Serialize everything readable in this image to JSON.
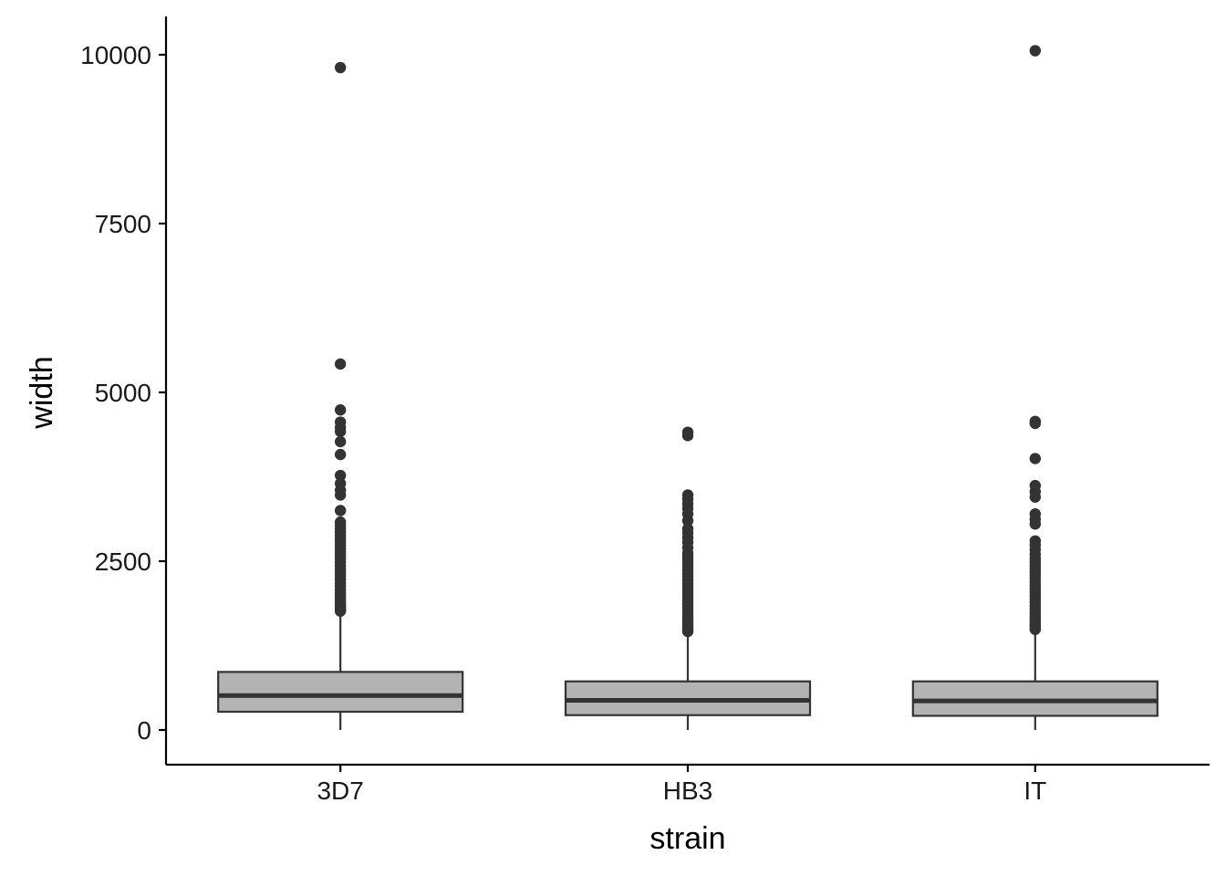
{
  "chart_data": {
    "type": "boxplot",
    "xlabel": "strain",
    "ylabel": "width",
    "categories": [
      "3D7",
      "HB3",
      "IT"
    ],
    "ylim": [
      -500,
      10600
    ],
    "yticks": [
      0,
      2500,
      5000,
      7500,
      10000
    ],
    "grid": false,
    "colors": {
      "box_fill": "#b3b3b3",
      "box_stroke": "#333333",
      "point": "#333333",
      "axis": "#000000"
    },
    "boxes": [
      {
        "category": "3D7",
        "whisker_low": 0,
        "q1": 270,
        "median": 510,
        "q3": 860,
        "whisker_high": 1740,
        "outliers": [
          1760,
          1780,
          1800,
          1830,
          1860,
          1900,
          1940,
          1980,
          2030,
          2080,
          2130,
          2180,
          2230,
          2280,
          2330,
          2380,
          2430,
          2480,
          2530,
          2580,
          2630,
          2680,
          2730,
          2780,
          2830,
          2880,
          2930,
          2980,
          3030,
          3080,
          3250,
          3480,
          3550,
          3650,
          3770,
          4080,
          4270,
          4420,
          4480,
          4560,
          4740,
          5420,
          9810
        ]
      },
      {
        "category": "HB3",
        "whisker_low": 0,
        "q1": 220,
        "median": 440,
        "q3": 720,
        "whisker_high": 1450,
        "outliers": [
          1460,
          1480,
          1500,
          1530,
          1560,
          1600,
          1640,
          1680,
          1720,
          1770,
          1820,
          1870,
          1920,
          1970,
          2020,
          2070,
          2120,
          2170,
          2220,
          2270,
          2320,
          2370,
          2420,
          2470,
          2520,
          2570,
          2620,
          2700,
          2780,
          2850,
          2920,
          2980,
          3100,
          3200,
          3280,
          3350,
          3420,
          3480,
          4360,
          4410
        ]
      },
      {
        "category": "IT",
        "whisker_low": 0,
        "q1": 210,
        "median": 430,
        "q3": 720,
        "whisker_high": 1480,
        "outliers": [
          1490,
          1510,
          1540,
          1570,
          1610,
          1650,
          1690,
          1740,
          1790,
          1840,
          1890,
          1940,
          1990,
          2040,
          2090,
          2140,
          2190,
          2240,
          2290,
          2340,
          2390,
          2440,
          2490,
          2540,
          2600,
          2670,
          2740,
          2800,
          3050,
          3120,
          3200,
          3450,
          3530,
          3620,
          4020,
          4540,
          4570,
          10060
        ]
      }
    ]
  }
}
